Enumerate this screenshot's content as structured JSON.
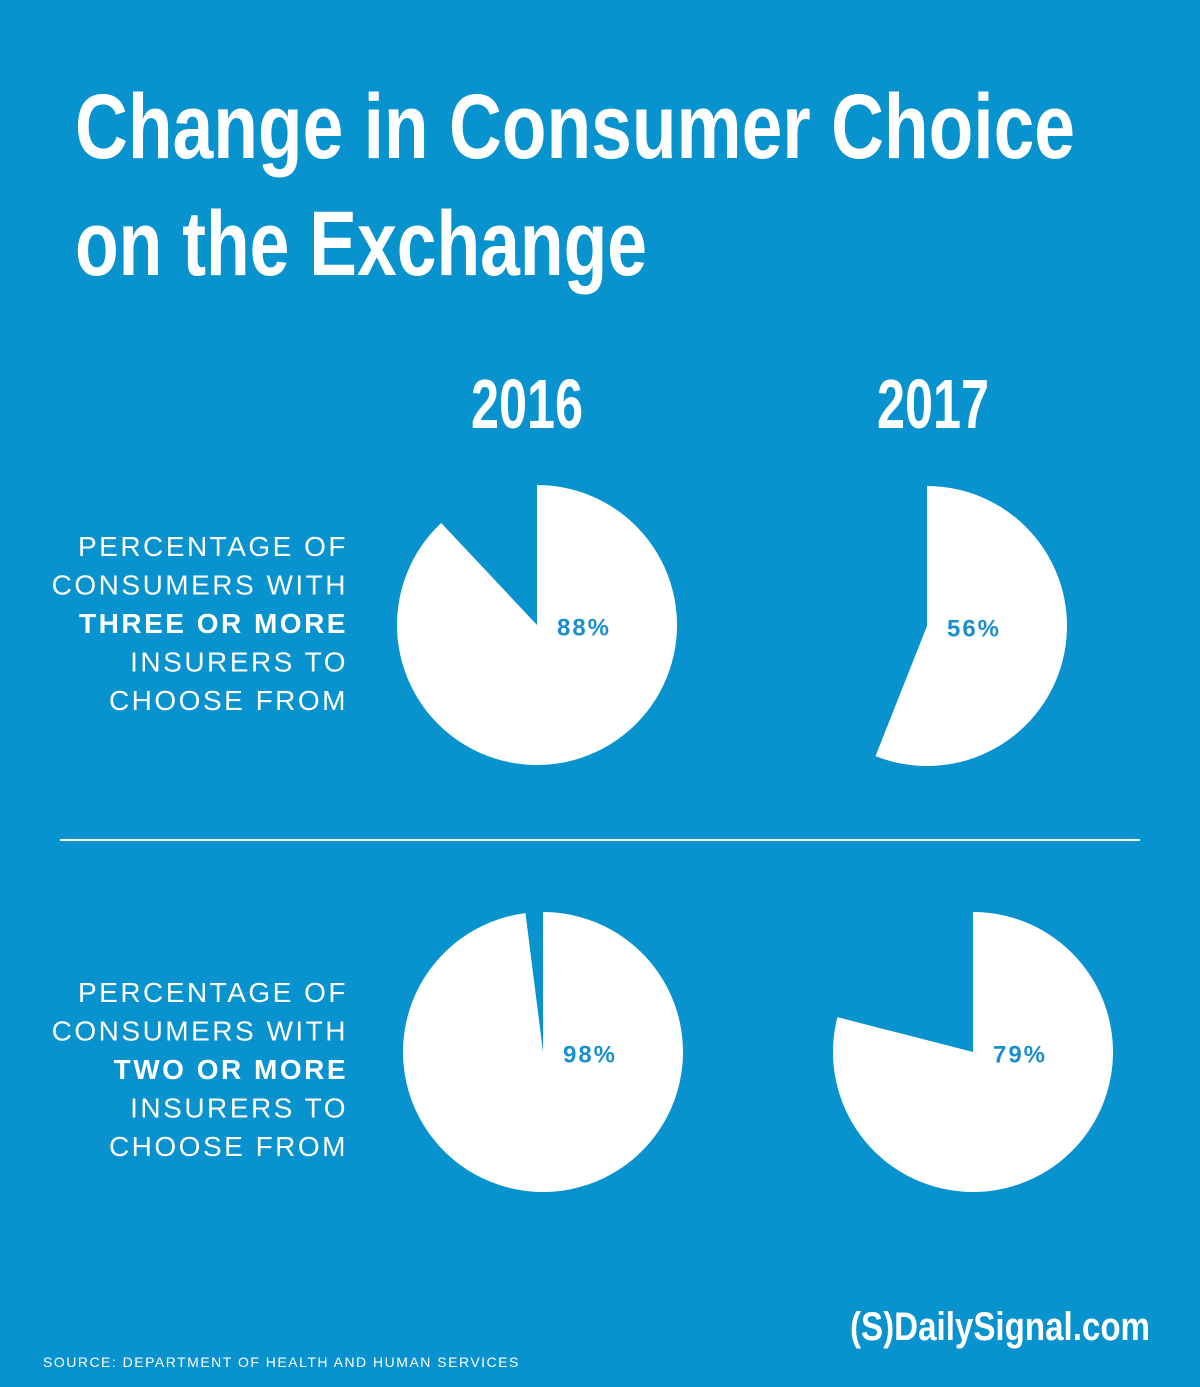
{
  "title": [
    "Change in Consumer Choice",
    "on the Exchange"
  ],
  "columns": [
    "2016",
    "2017"
  ],
  "rows": [
    {
      "before": [
        "PERCENTAGE OF",
        "CONSUMERS WITH"
      ],
      "emphasis": "THREE OR MORE",
      "after": [
        "INSURERS TO",
        "CHOOSE FROM"
      ]
    },
    {
      "before": [
        "PERCENTAGE OF",
        "CONSUMERS WITH"
      ],
      "emphasis": "TWO OR MORE",
      "after": [
        "INSURERS TO",
        "CHOOSE FROM"
      ]
    }
  ],
  "chart_data": [
    {
      "type": "pie",
      "values": [
        88
      ],
      "value_labels": [
        "88%"
      ],
      "color": "#ffffff"
    },
    {
      "type": "pie",
      "values": [
        56
      ],
      "value_labels": [
        "56%"
      ],
      "color": "#ffffff"
    },
    {
      "type": "pie",
      "values": [
        98
      ],
      "value_labels": [
        "98%"
      ],
      "color": "#ffffff"
    },
    {
      "type": "pie",
      "values": [
        79
      ],
      "value_labels": [
        "79%"
      ],
      "color": "#ffffff"
    }
  ],
  "source": "SOURCE: DEPARTMENT OF HEALTH AND HUMAN SERVICES",
  "brand": "(S)DailySignal.com"
}
